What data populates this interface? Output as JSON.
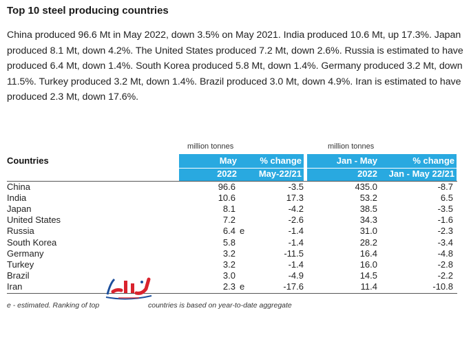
{
  "title": "Top 10 steel producing countries",
  "paragraph": "China produced 96.6 Mt in May 2022, down 3.5% on May 2021. India produced 10.6 Mt, up 17.3%. Japan produced 8.1 Mt, down 4.2%. The United States produced 7.2 Mt, down 2.6%. Russia is estimated to have produced 6.4 Mt, down 1.4%. South Korea produced 5.8 Mt, down 1.4%. Germany produced 3.2 Mt, down 11.5%. Turkey produced 3.2 Mt, down 1.4%. Brazil produced 3.0 Mt, down 4.9%. Iran is estimated to have produced 2.3 Mt, down 17.6%.",
  "table": {
    "units_left": "million tonnes",
    "units_right": "million tonnes",
    "countries_header": "Countries",
    "headers": [
      {
        "line1": "May",
        "line2": "2022"
      },
      {
        "line1": "% change",
        "line2": "May-22/21"
      },
      {
        "line1": "Jan - May",
        "line2": "2022"
      },
      {
        "line1": "% change",
        "line2": "Jan - May 22/21"
      }
    ],
    "rows": [
      {
        "country": "China",
        "may": "96.6",
        "est": "",
        "pct": "-3.5",
        "jan_may": "435.0",
        "pct_jm": "-8.7"
      },
      {
        "country": "India",
        "may": "10.6",
        "est": "",
        "pct": "17.3",
        "jan_may": "53.2",
        "pct_jm": "6.5"
      },
      {
        "country": "Japan",
        "may": "8.1",
        "est": "",
        "pct": "-4.2",
        "jan_may": "38.5",
        "pct_jm": "-3.5"
      },
      {
        "country": "United States",
        "may": "7.2",
        "est": "",
        "pct": "-2.6",
        "jan_may": "34.3",
        "pct_jm": "-1.6"
      },
      {
        "country": "Russia",
        "may": "6.4",
        "est": "e",
        "pct": "-1.4",
        "jan_may": "31.0",
        "pct_jm": "-2.3"
      },
      {
        "country": "South Korea",
        "may": "5.8",
        "est": "",
        "pct": "-1.4",
        "jan_may": "28.2",
        "pct_jm": "-3.4"
      },
      {
        "country": "Germany",
        "may": "3.2",
        "est": "",
        "pct": "-11.5",
        "jan_may": "16.4",
        "pct_jm": "-4.8"
      },
      {
        "country": "Turkey",
        "may": "3.2",
        "est": "",
        "pct": "-1.4",
        "jan_may": "16.0",
        "pct_jm": "-2.8"
      },
      {
        "country": "Brazil",
        "may": "3.0",
        "est": "",
        "pct": "-4.9",
        "jan_may": "14.5",
        "pct_jm": "-2.2"
      },
      {
        "country": "Iran",
        "may": "2.3",
        "est": "e",
        "pct": "-17.6",
        "jan_may": "11.4",
        "pct_jm": "-10.8"
      }
    ]
  },
  "footnote_part1": "e - estimated. Ranking of top",
  "footnote_part2": "countries is based on year-to-date aggregate",
  "colors": {
    "header_bg": "#29a9e0",
    "logo_red": "#d9232d",
    "logo_blue": "#1c4f9c"
  }
}
